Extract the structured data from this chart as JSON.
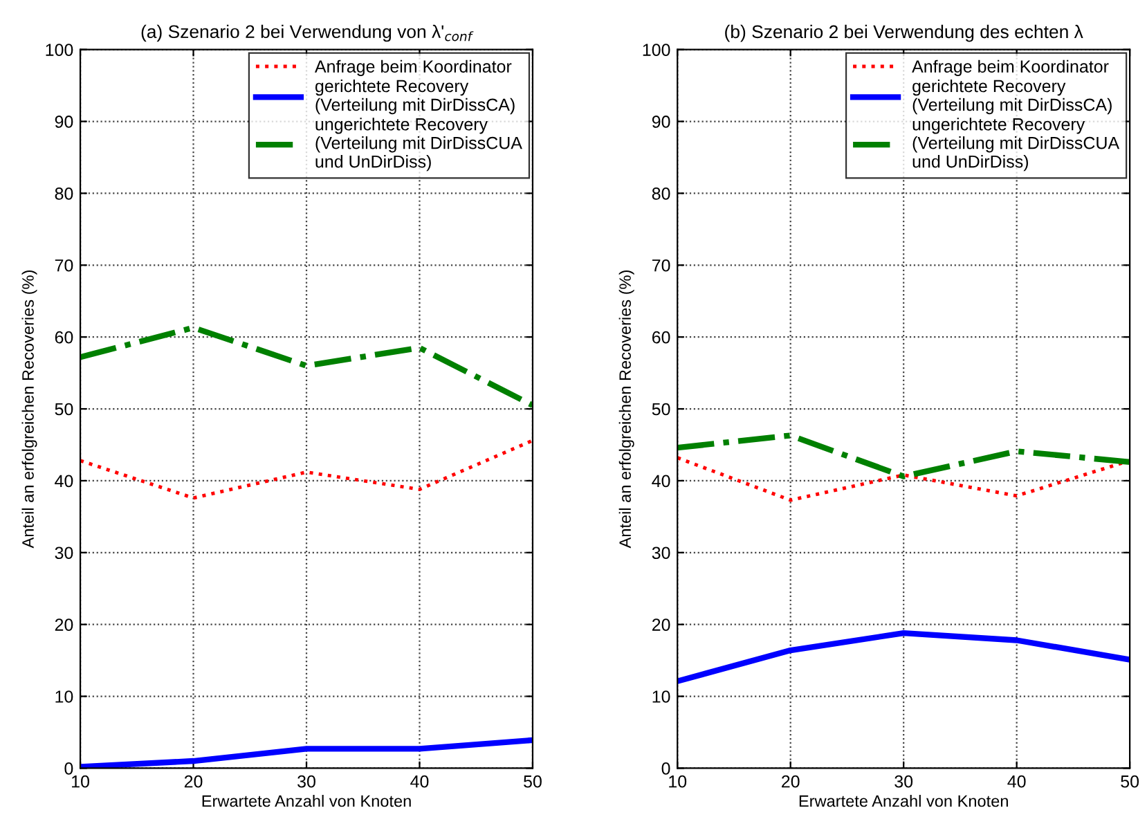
{
  "chart_data": [
    {
      "type": "line",
      "title": "(a) Szenario 2 bei Verwendung von λ'$_{conf}$",
      "xlabel": "Erwartete Anzahl von Knoten",
      "ylabel": "Anteil an erfolgreichen Recoveries (%)",
      "x": [
        10,
        20,
        30,
        40,
        50
      ],
      "xlim": [
        10,
        50
      ],
      "xticks": [
        10,
        20,
        30,
        40,
        50
      ],
      "ylim": [
        0,
        100
      ],
      "yticks": [
        0,
        10,
        20,
        30,
        40,
        50,
        60,
        70,
        80,
        90,
        100
      ],
      "grid": true,
      "legend": "top right",
      "series": [
        {
          "name": "Anfrage beim Koordinator",
          "color": "#ff0000",
          "line_style": "dotted",
          "values": [
            42.8,
            37.6,
            41.2,
            38.8,
            45.6
          ]
        },
        {
          "name": "gerichtete Recovery\n(Verteilung mit DirDissCA)",
          "color": "#0000ff",
          "line_style": "solid",
          "values": [
            0.2,
            1.0,
            2.7,
            2.7,
            3.9
          ]
        },
        {
          "name": "ungerichtete Recovery\n(Verteilung mit DirDissCUA\nund UnDirDiss)",
          "color": "#008000",
          "line_style": "dashdot",
          "values": [
            57.2,
            61.3,
            56.0,
            58.5,
            50.5
          ]
        }
      ]
    },
    {
      "type": "line",
      "title": "(b) Szenario 2 bei Verwendung des echten λ",
      "xlabel": "Erwartete Anzahl von Knoten",
      "ylabel": "Anteil an erfolgreichen Recoveries (%)",
      "x": [
        10,
        20,
        30,
        40,
        50
      ],
      "xlim": [
        10,
        50
      ],
      "xticks": [
        10,
        20,
        30,
        40,
        50
      ],
      "ylim": [
        0,
        100
      ],
      "yticks": [
        0,
        10,
        20,
        30,
        40,
        50,
        60,
        70,
        80,
        90,
        100
      ],
      "grid": true,
      "legend": "top right",
      "series": [
        {
          "name": "Anfrage beim Koordinator",
          "color": "#ff0000",
          "line_style": "dotted",
          "values": [
            43.2,
            37.3,
            40.8,
            37.9,
            42.8
          ]
        },
        {
          "name": "gerichtete Recovery\n(Verteilung mit DirDissCA)",
          "color": "#0000ff",
          "line_style": "solid",
          "values": [
            12.1,
            16.4,
            18.8,
            17.8,
            15.1
          ]
        },
        {
          "name": "ungerichtete Recovery\n(Verteilung mit DirDissCUA\nund UnDirDiss)",
          "color": "#008000",
          "line_style": "dashdot",
          "values": [
            44.6,
            46.3,
            40.6,
            44.1,
            42.6
          ]
        }
      ]
    }
  ]
}
